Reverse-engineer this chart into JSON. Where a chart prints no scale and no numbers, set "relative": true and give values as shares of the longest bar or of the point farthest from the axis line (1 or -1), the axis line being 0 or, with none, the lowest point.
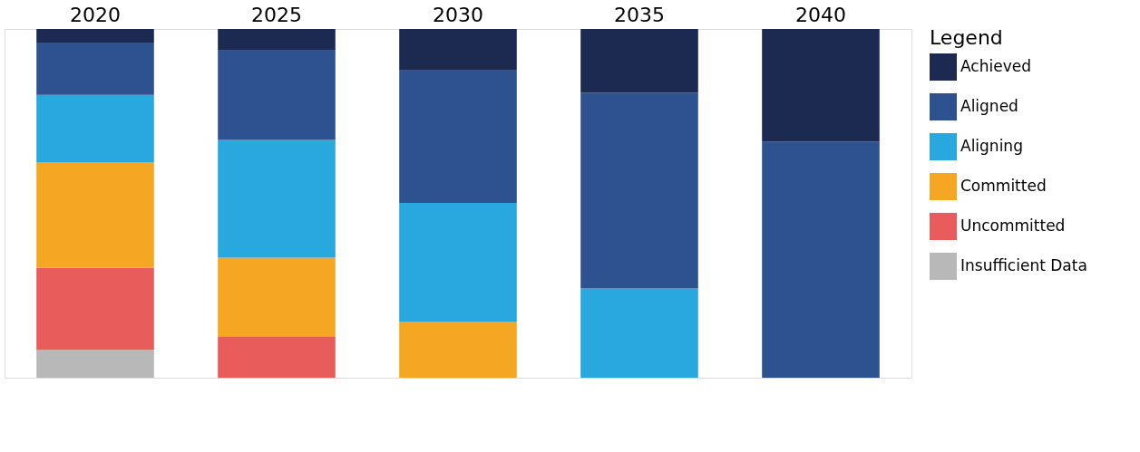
{
  "chart_data": {
    "type": "bar",
    "stacked": true,
    "relative": true,
    "legend": "right",
    "legend_title": "Legend",
    "grid": false,
    "categories": [
      "2020",
      "2025",
      "2030",
      "2035",
      "2040"
    ],
    "series": [
      {
        "name": "Insufficient Data",
        "color": "#b8b8b8",
        "values": [
          0.08,
          null,
          null,
          null,
          null
        ]
      },
      {
        "name": "Uncommitted",
        "color": "#e85c5c",
        "values": [
          0.235,
          0.119,
          null,
          null,
          null
        ]
      },
      {
        "name": "Committed",
        "color": "#f5a623",
        "values": [
          0.302,
          0.225,
          0.16,
          null,
          null
        ]
      },
      {
        "name": "Aligning",
        "color": "#29a8e0",
        "values": [
          0.194,
          0.338,
          0.341,
          0.256,
          null
        ]
      },
      {
        "name": "Aligned",
        "color": "#2d528f",
        "values": [
          0.15,
          0.256,
          0.38,
          0.561,
          0.677
        ]
      },
      {
        "name": "Achieved",
        "color": "#1c2a52",
        "values": [
          0.039,
          0.062,
          0.119,
          0.183,
          0.323
        ]
      }
    ]
  }
}
